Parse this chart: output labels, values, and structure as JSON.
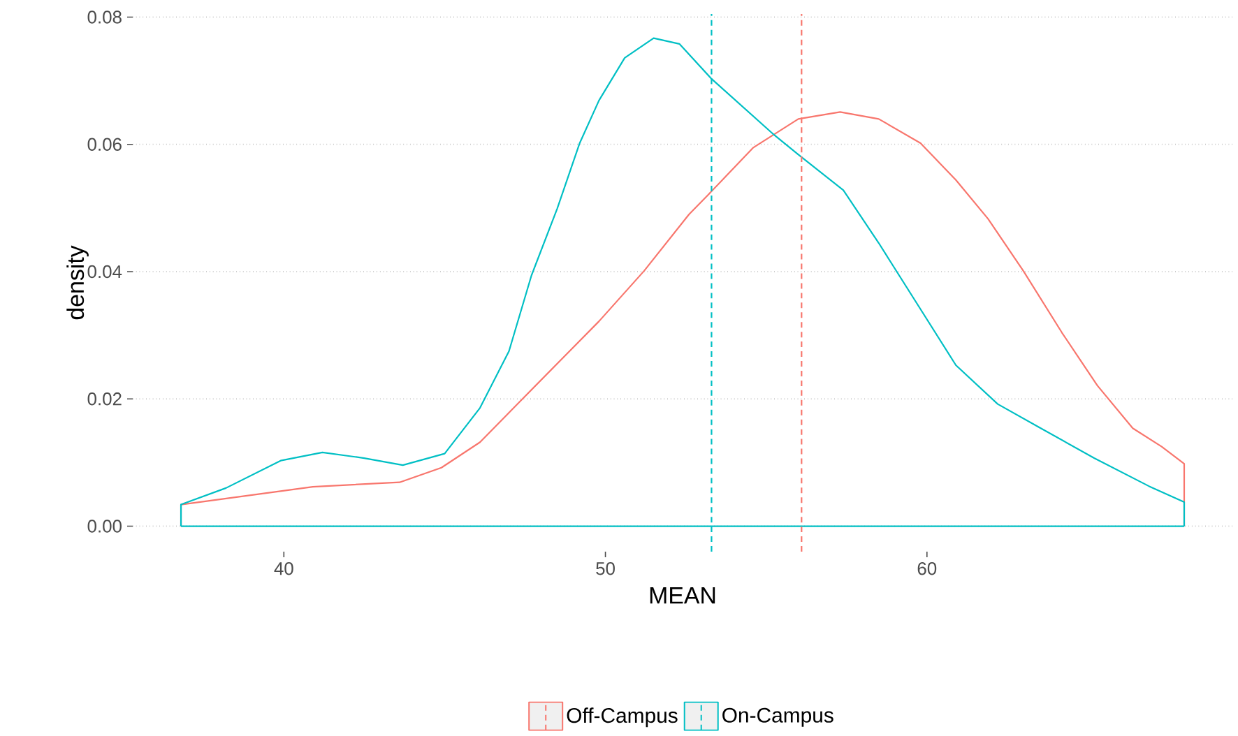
{
  "chart_data": {
    "type": "line",
    "xlabel": "MEAN",
    "ylabel": "density",
    "xlim": [
      35.3,
      69.5
    ],
    "ylim": [
      -0.004,
      0.0805
    ],
    "xticks": [
      40,
      50,
      60
    ],
    "yticks": [
      {
        "value": 0,
        "label": "0.00"
      },
      {
        "value": 0.02,
        "label": "0.02"
      },
      {
        "value": 0.04,
        "label": "0.04"
      },
      {
        "value": 0.06,
        "label": "0.06"
      },
      {
        "value": 0.08,
        "label": "0.08"
      }
    ],
    "grid": "y",
    "legend": "bottom",
    "series": [
      {
        "name": "Off-Campus",
        "color": "#f8766d",
        "x": [
          36.8,
          36.8,
          40.9,
          43.6,
          44.9,
          46.1,
          47.4,
          49.8,
          51.2,
          52.6,
          53.2,
          54.6,
          56.0,
          57.3,
          58.5,
          59.8,
          60.9,
          61.9,
          63.0,
          64.2,
          65.3,
          66.4,
          67.3,
          68.0,
          68.0
        ],
        "values": [
          0,
          0.0034,
          0.0062,
          0.0069,
          0.0092,
          0.0132,
          0.0199,
          0.0322,
          0.0401,
          0.049,
          0.0521,
          0.0595,
          0.064,
          0.0651,
          0.064,
          0.0602,
          0.0544,
          0.0483,
          0.0401,
          0.0304,
          0.0221,
          0.0154,
          0.0125,
          0.0098,
          0
        ]
      },
      {
        "name": "On-Campus",
        "color": "#00bfc4",
        "x": [
          36.8,
          36.8,
          38.2,
          39.9,
          41.2,
          42.5,
          43.7,
          45.0,
          46.1,
          47.0,
          47.7,
          48.5,
          49.2,
          49.8,
          50.6,
          51.5,
          52.3,
          53.3,
          55.2,
          56.0,
          57.4,
          58.5,
          59.7,
          60.9,
          62.2,
          63.5,
          65.2,
          66.9,
          68.0,
          68.0
        ],
        "values": [
          0,
          0.0034,
          0.006,
          0.0103,
          0.0116,
          0.0107,
          0.0096,
          0.0114,
          0.0186,
          0.0275,
          0.0394,
          0.0499,
          0.0602,
          0.0669,
          0.0736,
          0.0767,
          0.0758,
          0.0703,
          0.0617,
          0.0584,
          0.0528,
          0.0445,
          0.0349,
          0.0253,
          0.0192,
          0.0155,
          0.0107,
          0.0063,
          0.0038,
          0
        ]
      },
      {
        "color": "#00bfc4",
        "x": [
          36.8,
          68.0
        ],
        "values": [
          0,
          0
        ]
      }
    ],
    "ref_lines": [
      {
        "axis": "x",
        "value": 53.3,
        "color": "#00bfc4",
        "line_style": "dashed"
      },
      {
        "axis": "x",
        "value": 56.1,
        "color": "#f8766d",
        "line_style": "dashed"
      }
    ]
  }
}
